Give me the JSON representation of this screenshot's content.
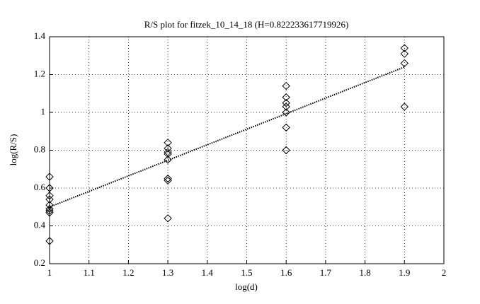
{
  "chart_data": {
    "type": "scatter",
    "title": "R/S plot for fitzek_10_14_18 (H=0.822233617719926)",
    "x_label": "log(d)",
    "y_label": "log(R/S)",
    "xlim": [
      1,
      2
    ],
    "xticks": [
      1,
      1.1,
      1.2,
      1.3,
      1.4,
      1.5,
      1.6,
      1.7,
      1.8,
      1.9,
      2
    ],
    "ylim": [
      0.2,
      1.4
    ],
    "yticks": [
      0.2,
      0.4,
      0.6,
      0.8,
      1,
      1.2,
      1.4
    ],
    "grid": true,
    "series": [
      {
        "type": "scatter",
        "color": "#000000",
        "x": [
          1,
          1,
          1,
          1,
          1,
          1,
          1,
          1,
          1,
          1.3,
          1.3,
          1.3,
          1.3,
          1.3,
          1.3,
          1.3,
          1.3,
          1.6,
          1.6,
          1.6,
          1.6,
          1.6,
          1.6,
          1.6,
          1.9,
          1.9,
          1.9,
          1.9
        ],
        "values": [
          0.66,
          0.6,
          0.56,
          0.54,
          0.51,
          0.49,
          0.48,
          0.47,
          0.32,
          0.84,
          0.81,
          0.79,
          0.78,
          0.75,
          0.65,
          0.64,
          0.44,
          1.14,
          1.08,
          1.05,
          1.03,
          1.0,
          0.92,
          0.8,
          1.34,
          1.31,
          1.26,
          1.03
        ]
      },
      {
        "type": "line",
        "color": "#000000",
        "x": [
          1,
          1.9
        ],
        "values": [
          0.5,
          1.24
        ]
      }
    ]
  }
}
